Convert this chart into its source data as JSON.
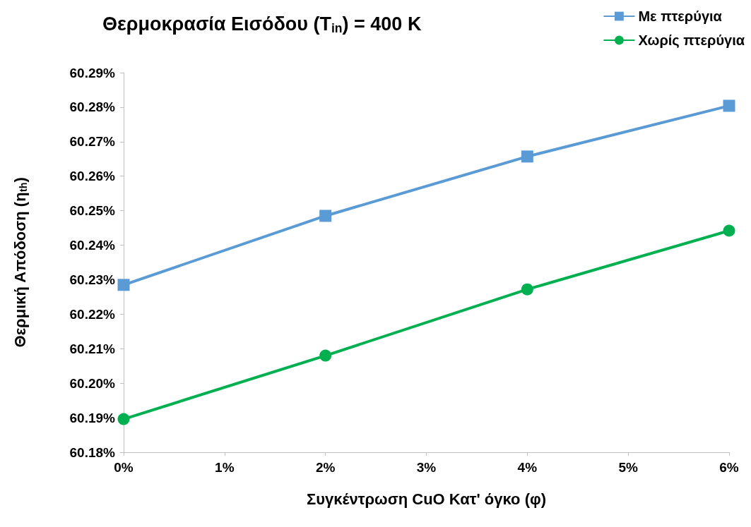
{
  "chart_data": {
    "type": "line",
    "title": "Θερμοκρασία Εισόδου (T$_{in}$) = 400 K",
    "xlabel": "Συγκέντρωση CuO Κατ' όγκο (φ)",
    "ylabel": "Θερμική Απόδοση (η$_{th}$)",
    "x": [
      0,
      2,
      4,
      6
    ],
    "series": [
      {
        "name": "Με πτερύγια",
        "color": "#5b9bd5",
        "marker": "square",
        "values": [
          60.2285,
          60.2485,
          60.2657,
          60.2804
        ]
      },
      {
        "name": "Χωρίς πτερύγια",
        "color": "#00b050",
        "marker": "circle",
        "values": [
          60.1896,
          60.208,
          60.2272,
          60.2442
        ]
      }
    ],
    "xlim": [
      0,
      6
    ],
    "xticks": [
      {
        "value": 0,
        "label": "0%"
      },
      {
        "value": 1,
        "label": "1%"
      },
      {
        "value": 2,
        "label": "2%"
      },
      {
        "value": 3,
        "label": "3%"
      },
      {
        "value": 4,
        "label": "4%"
      },
      {
        "value": 5,
        "label": "5%"
      },
      {
        "value": 6,
        "label": "6%"
      }
    ],
    "ylim": [
      60.18,
      60.29
    ],
    "yticks": [
      {
        "value": 60.18,
        "label": "60.18%"
      },
      {
        "value": 60.19,
        "label": "60.19%"
      },
      {
        "value": 60.2,
        "label": "60.20%"
      },
      {
        "value": 60.21,
        "label": "60.21%"
      },
      {
        "value": 60.22,
        "label": "60.22%"
      },
      {
        "value": 60.23,
        "label": "60.23%"
      },
      {
        "value": 60.24,
        "label": "60.24%"
      },
      {
        "value": 60.25,
        "label": "60.25%"
      },
      {
        "value": 60.26,
        "label": "60.26%"
      },
      {
        "value": 60.27,
        "label": "60.27%"
      },
      {
        "value": 60.28,
        "label": "60.28%"
      },
      {
        "value": 60.29,
        "label": "60.29%"
      }
    ],
    "grid": false,
    "legend": "top right",
    "line_style": "solid"
  }
}
